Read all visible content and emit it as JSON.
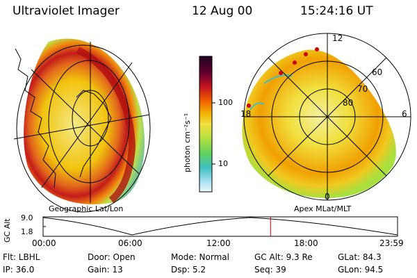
{
  "header": {
    "title": "Ultraviolet Imager",
    "date": "12 Aug 00",
    "time": "15:24:16 UT"
  },
  "panels": {
    "geographic_label": "Geographic Lat/Lon",
    "apex_label": "Apex MLat/MLT"
  },
  "colorbar": {
    "label": "photon cm⁻²s⁻¹",
    "ticks": [
      "100",
      "10"
    ]
  },
  "polar_plot": {
    "mlt_labels": {
      "top": "12",
      "left": "18",
      "right": "6",
      "bottom": "0"
    },
    "lat_labels": [
      "60",
      "70",
      "80"
    ]
  },
  "timeline": {
    "ylabel": "GC Alt",
    "yticks": [
      "9.0",
      "1.8"
    ],
    "xticks": [
      "00:00",
      "06:00",
      "12:00",
      "18:00",
      "23:59"
    ],
    "current_fraction": 0.6418
  },
  "footer": {
    "row1": {
      "flt": "Flt: LBHL",
      "door": "Door: Open",
      "mode": "Mode: Normal",
      "gc_alt": "GC Alt: 9.3 Re",
      "glat": "GLat:  84.3"
    },
    "row2": {
      "ip": "IP: 36.0",
      "gain": "Gain: 13",
      "dsp": "Dsp:     5.2",
      "seq": "Seq: 39",
      "glon": "GLon:  94.5"
    }
  },
  "colors": {
    "line": "#000000",
    "marker": "#cc0000",
    "low": "#77c8d8",
    "mid": "#b8e040",
    "high": "#f0d000",
    "peak": "#cc1010"
  }
}
